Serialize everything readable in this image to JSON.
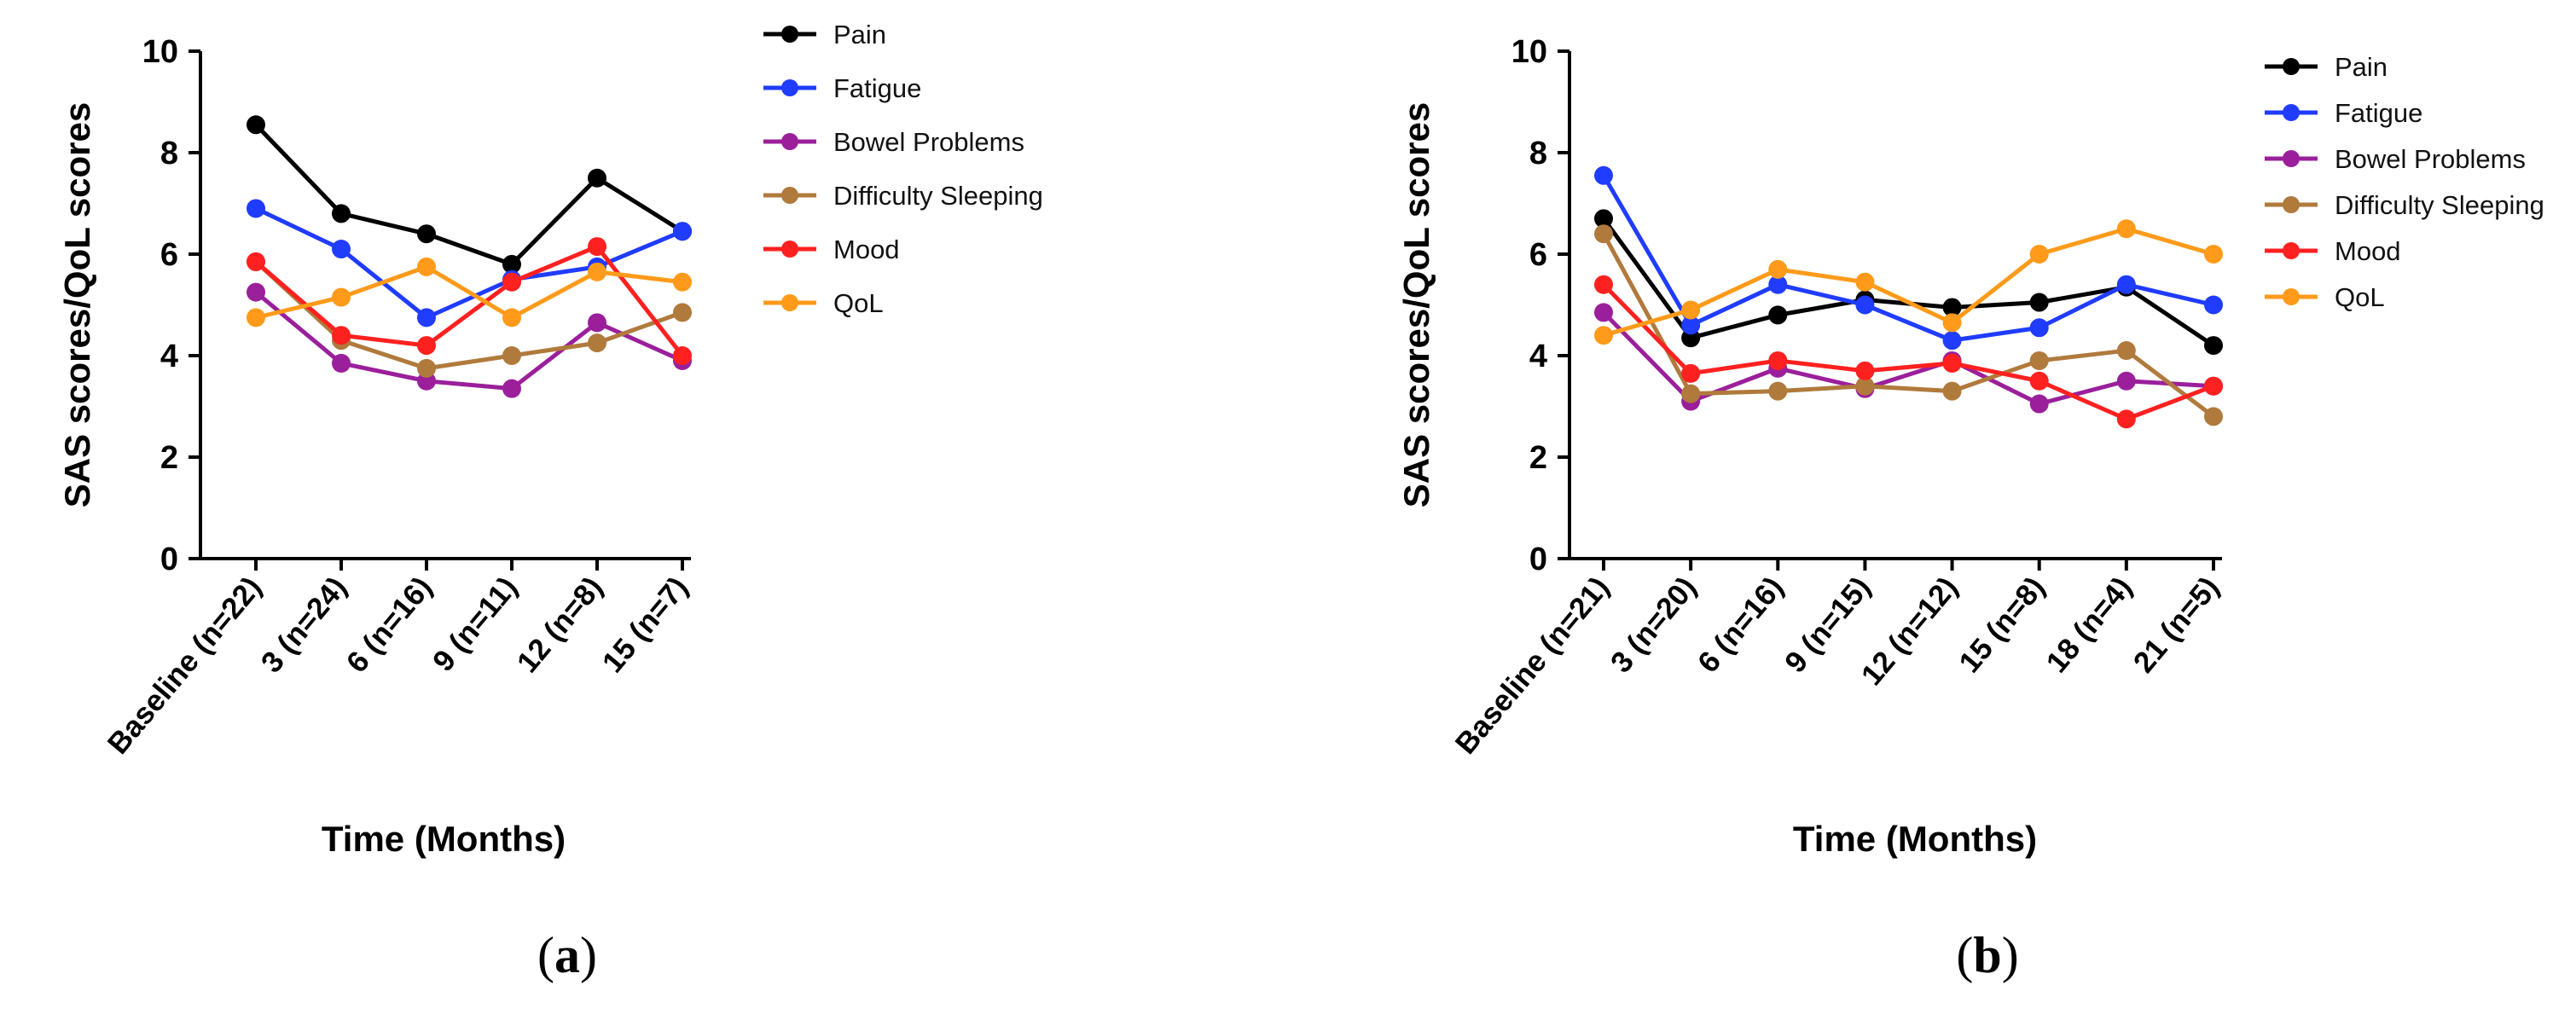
{
  "chart_data": [
    {
      "type": "line",
      "panel_label": "a",
      "xlabel": "Time (Months)",
      "ylabel": "SAS scores/QoL scores",
      "ylim": [
        0,
        10
      ],
      "yticks": [
        "0",
        "2",
        "4",
        "6",
        "8",
        "10"
      ],
      "categories": [
        "Baseline (n=22)",
        "3 (n=24)",
        "6 (n=16)",
        "9 (n=11)",
        "12 (n=8)",
        "15 (n=7)"
      ],
      "legend_position": "right",
      "series": [
        {
          "name": "Pain",
          "color": "#000000",
          "values": [
            8.55,
            6.8,
            6.4,
            5.8,
            7.5,
            6.45
          ]
        },
        {
          "name": "Fatigue",
          "color": "#1f3cff",
          "values": [
            6.9,
            6.1,
            4.75,
            5.5,
            5.75,
            6.45
          ]
        },
        {
          "name": "Bowel Problems",
          "color": "#9b1f9b",
          "values": [
            5.25,
            3.85,
            3.5,
            3.35,
            4.65,
            3.9
          ]
        },
        {
          "name": "Difficulty Sleeping",
          "color": "#b07a3c",
          "values": [
            5.85,
            4.3,
            3.75,
            4.0,
            4.25,
            4.85
          ]
        },
        {
          "name": "Mood",
          "color": "#ff2020",
          "values": [
            5.85,
            4.4,
            4.2,
            5.45,
            6.15,
            4.0
          ]
        },
        {
          "name": "QoL",
          "color": "#ff9a1a",
          "values": [
            4.75,
            5.15,
            5.75,
            4.75,
            5.65,
            5.45
          ]
        }
      ]
    },
    {
      "type": "line",
      "panel_label": "b",
      "xlabel": "Time (Months)",
      "ylabel": "SAS scores/QoL scores",
      "ylim": [
        0,
        10
      ],
      "yticks": [
        "0",
        "2",
        "4",
        "6",
        "8",
        "10"
      ],
      "categories": [
        "Baseline (n=21)",
        "3 (n=20)",
        "6 (n=16)",
        "9 (n=15)",
        "12 (n=12)",
        "15 (n=8)",
        "18 (n=4)",
        "21 (n=5)"
      ],
      "legend_position": "right",
      "series": [
        {
          "name": "Pain",
          "color": "#000000",
          "values": [
            6.7,
            4.35,
            4.8,
            5.1,
            4.95,
            5.05,
            5.35,
            4.2
          ]
        },
        {
          "name": "Fatigue",
          "color": "#1f3cff",
          "values": [
            7.55,
            4.6,
            5.4,
            5.0,
            4.3,
            4.55,
            5.4,
            5.0
          ]
        },
        {
          "name": "Bowel Problems",
          "color": "#9b1f9b",
          "values": [
            4.85,
            3.1,
            3.75,
            3.35,
            3.9,
            3.05,
            3.5,
            3.4
          ]
        },
        {
          "name": "Difficulty Sleeping",
          "color": "#b07a3c",
          "values": [
            6.4,
            3.25,
            3.3,
            3.4,
            3.3,
            3.9,
            4.1,
            2.8
          ]
        },
        {
          "name": "Mood",
          "color": "#ff2020",
          "values": [
            5.4,
            3.65,
            3.9,
            3.7,
            3.85,
            3.5,
            2.75,
            3.4
          ]
        },
        {
          "name": "QoL",
          "color": "#ff9a1a",
          "values": [
            4.4,
            4.9,
            5.7,
            5.45,
            4.65,
            6.0,
            6.5,
            6.0
          ]
        }
      ]
    }
  ]
}
